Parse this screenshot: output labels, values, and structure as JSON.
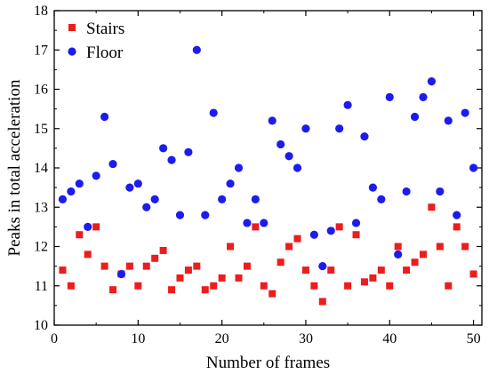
{
  "chart_data": {
    "type": "scatter",
    "xlabel": "Number of frames",
    "ylabel": "Peaks in total acceleration",
    "xlim": [
      0,
      51
    ],
    "ylim": [
      10,
      18
    ],
    "xticks": [
      "0",
      "10",
      "20",
      "30",
      "40",
      "50"
    ],
    "yticks": [
      "10",
      "11",
      "12",
      "13",
      "14",
      "15",
      "16",
      "17",
      "18"
    ],
    "grid": false,
    "legend_position": "top-left",
    "series": [
      {
        "name": "Stairs",
        "marker": "square",
        "color": "#ee1c1c",
        "x": [
          1,
          2,
          3,
          4,
          5,
          6,
          7,
          8,
          9,
          10,
          11,
          12,
          13,
          14,
          15,
          16,
          17,
          18,
          19,
          20,
          21,
          22,
          23,
          24,
          25,
          26,
          27,
          28,
          29,
          30,
          31,
          32,
          33,
          34,
          35,
          36,
          37,
          38,
          39,
          40,
          41,
          42,
          43,
          44,
          45,
          46,
          47,
          48,
          49,
          50
        ],
        "y": [
          11.4,
          11.0,
          12.3,
          11.8,
          12.5,
          11.5,
          10.9,
          11.3,
          11.5,
          11.0,
          11.5,
          11.7,
          11.9,
          10.9,
          11.2,
          11.4,
          11.5,
          10.9,
          11.0,
          11.2,
          12.0,
          11.2,
          11.5,
          12.5,
          11.0,
          10.8,
          11.6,
          12.0,
          12.2,
          11.4,
          11.0,
          10.6,
          11.4,
          12.5,
          11.0,
          12.3,
          11.1,
          11.2,
          11.4,
          11.0,
          12.0,
          11.4,
          11.6,
          11.8,
          13.0,
          12.0,
          11.0,
          12.5,
          12.0,
          11.3
        ]
      },
      {
        "name": "Floor",
        "marker": "circle",
        "color": "#1c1cee",
        "x": [
          1,
          2,
          3,
          4,
          5,
          6,
          7,
          8,
          9,
          10,
          11,
          12,
          13,
          14,
          15,
          16,
          17,
          18,
          19,
          20,
          21,
          22,
          23,
          24,
          25,
          26,
          27,
          28,
          29,
          30,
          31,
          32,
          33,
          34,
          35,
          36,
          37,
          38,
          39,
          40,
          41,
          42,
          43,
          44,
          45,
          46,
          47,
          48,
          49,
          50
        ],
        "y": [
          13.2,
          13.4,
          13.6,
          12.5,
          13.8,
          15.3,
          14.1,
          11.3,
          13.5,
          13.6,
          13.0,
          13.2,
          14.5,
          14.2,
          12.8,
          14.4,
          17.0,
          12.8,
          15.4,
          13.2,
          13.6,
          14.0,
          12.6,
          13.2,
          12.6,
          15.2,
          14.6,
          14.3,
          14.0,
          15.0,
          12.3,
          11.5,
          12.4,
          15.0,
          15.6,
          12.6,
          14.8,
          13.5,
          13.2,
          15.8,
          11.8,
          13.4,
          15.3,
          15.8,
          16.2,
          13.4,
          15.2,
          12.8,
          15.4,
          14.0
        ]
      }
    ]
  }
}
